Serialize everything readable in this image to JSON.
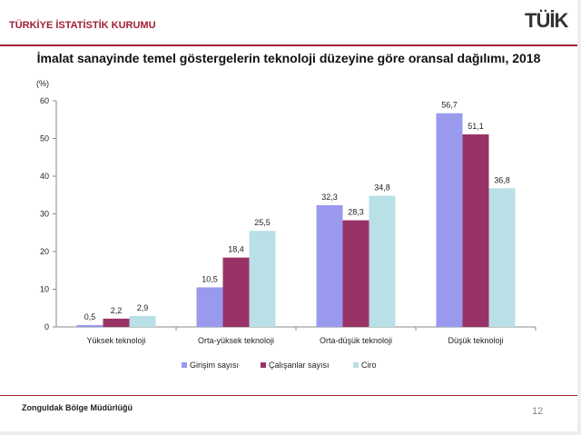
{
  "header": {
    "org": "TÜRKİYE İSTATİSTİK KURUMU",
    "logo": "TÜİK"
  },
  "footer": {
    "office": "Zonguldak Bölge Müdürlüğü",
    "page": "12"
  },
  "chart_data": {
    "type": "bar",
    "title": "İmalat sanayinde temel göstergelerin teknoloji düzeyine göre oransal dağılımı, 2018",
    "ylabel": "(%)",
    "xlabel": "",
    "ylim": [
      0,
      60
    ],
    "yticks": [
      0,
      10,
      20,
      30,
      40,
      50,
      60
    ],
    "categories": [
      "Yüksek teknoloji",
      "Orta-yüksek teknoloji",
      "Orta-düşük teknoloji",
      "Düşük teknoloji"
    ],
    "series": [
      {
        "name": "Girişim sayısı",
        "color": "#9999ee",
        "values": [
          0.5,
          10.5,
          32.3,
          56.7
        ],
        "labels": [
          "0,5",
          "10,5",
          "32,3",
          "56,7"
        ]
      },
      {
        "name": "Çalışanlar sayısı",
        "color": "#993366",
        "values": [
          2.2,
          18.4,
          28.3,
          51.1
        ],
        "labels": [
          "2,2",
          "18,4",
          "28,3",
          "51,1"
        ]
      },
      {
        "name": "Ciro",
        "color": "#b8e0e6",
        "values": [
          2.9,
          25.5,
          34.8,
          36.8
        ],
        "labels": [
          "2,9",
          "25,5",
          "34,8",
          "36,8"
        ]
      }
    ],
    "legend": "bottom",
    "grid": false
  }
}
